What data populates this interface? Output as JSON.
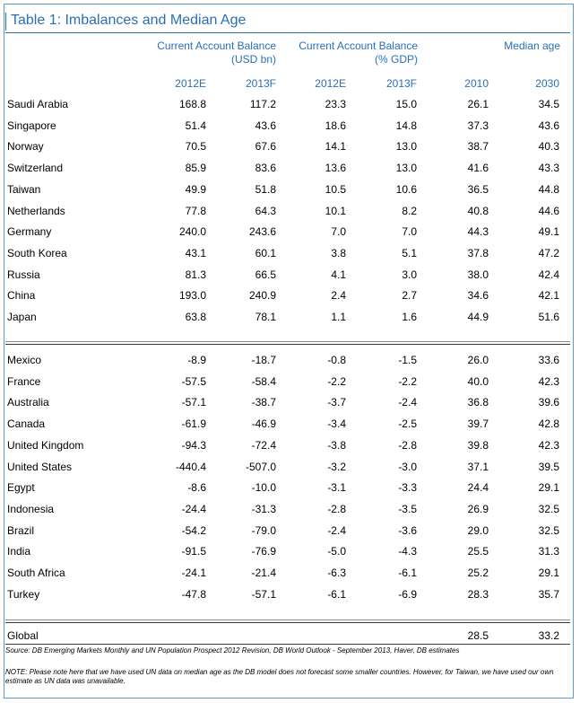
{
  "title": "Table 1: Imbalances and Median Age",
  "headers": {
    "group1": "Current Account Balance",
    "group1_sub": "(USD bn)",
    "group2": "Current Account Balance",
    "group2_sub": "(% GDP)",
    "group3": "Median age",
    "cols": [
      "2012E",
      "2013F",
      "2012E",
      "2013F",
      "2010",
      "2030"
    ]
  },
  "surplus_rows": [
    {
      "country": "Saudi Arabia",
      "v": [
        "168.8",
        "117.2",
        "23.3",
        "15.0",
        "26.1",
        "34.5"
      ]
    },
    {
      "country": "Singapore",
      "v": [
        "51.4",
        "43.6",
        "18.6",
        "14.8",
        "37.3",
        "43.6"
      ]
    },
    {
      "country": "Norway",
      "v": [
        "70.5",
        "67.6",
        "14.1",
        "13.0",
        "38.7",
        "40.3"
      ]
    },
    {
      "country": "Switzerland",
      "v": [
        "85.9",
        "83.6",
        "13.6",
        "13.0",
        "41.6",
        "43.3"
      ]
    },
    {
      "country": "Taiwan",
      "v": [
        "49.9",
        "51.8",
        "10.5",
        "10.6",
        "36.5",
        "44.8"
      ]
    },
    {
      "country": "Netherlands",
      "v": [
        "77.8",
        "64.3",
        "10.1",
        "8.2",
        "40.8",
        "44.6"
      ]
    },
    {
      "country": "Germany",
      "v": [
        "240.0",
        "243.6",
        "7.0",
        "7.0",
        "44.3",
        "49.1"
      ]
    },
    {
      "country": "South Korea",
      "v": [
        "43.1",
        "60.1",
        "3.8",
        "5.1",
        "37.8",
        "47.2"
      ]
    },
    {
      "country": "Russia",
      "v": [
        "81.3",
        "66.5",
        "4.1",
        "3.0",
        "38.0",
        "42.4"
      ]
    },
    {
      "country": "China",
      "v": [
        "193.0",
        "240.9",
        "2.4",
        "2.7",
        "34.6",
        "42.1"
      ]
    },
    {
      "country": "Japan",
      "v": [
        "63.8",
        "78.1",
        "1.1",
        "1.6",
        "44.9",
        "51.6"
      ]
    }
  ],
  "deficit_rows": [
    {
      "country": "Mexico",
      "v": [
        "-8.9",
        "-18.7",
        "-0.8",
        "-1.5",
        "26.0",
        "33.6"
      ]
    },
    {
      "country": "France",
      "v": [
        "-57.5",
        "-58.4",
        "-2.2",
        "-2.2",
        "40.0",
        "42.3"
      ]
    },
    {
      "country": "Australia",
      "v": [
        "-57.1",
        "-38.7",
        "-3.7",
        "-2.4",
        "36.8",
        "39.6"
      ]
    },
    {
      "country": "Canada",
      "v": [
        "-61.9",
        "-46.9",
        "-3.4",
        "-2.5",
        "39.7",
        "42.8"
      ]
    },
    {
      "country": "United Kingdom",
      "v": [
        "-94.3",
        "-72.4",
        "-3.8",
        "-2.8",
        "39.8",
        "42.3"
      ]
    },
    {
      "country": "United States",
      "v": [
        "-440.4",
        "-507.0",
        "-3.2",
        "-3.0",
        "37.1",
        "39.5"
      ]
    },
    {
      "country": "Egypt",
      "v": [
        "-8.6",
        "-10.0",
        "-3.1",
        "-3.3",
        "24.4",
        "29.1"
      ]
    },
    {
      "country": "Indonesia",
      "v": [
        "-24.4",
        "-31.3",
        "-2.8",
        "-3.5",
        "26.9",
        "32.5"
      ]
    },
    {
      "country": "Brazil",
      "v": [
        "-54.2",
        "-79.0",
        "-2.4",
        "-3.6",
        "29.0",
        "32.5"
      ]
    },
    {
      "country": "India",
      "v": [
        "-91.5",
        "-76.9",
        "-5.0",
        "-4.3",
        "25.5",
        "31.3"
      ]
    },
    {
      "country": "South Africa",
      "v": [
        "-24.1",
        "-21.4",
        "-6.3",
        "-6.1",
        "25.2",
        "29.1"
      ]
    },
    {
      "country": "Turkey",
      "v": [
        "-47.8",
        "-57.1",
        "-6.1",
        "-6.9",
        "28.3",
        "35.7"
      ]
    }
  ],
  "global_row": {
    "country": "Global",
    "v": [
      "",
      "",
      "",
      "",
      "28.5",
      "33.2"
    ]
  },
  "source": "Source: DB Emerging Markets Monthly and UN Population Prospect 2012 Revision, DB World Outlook - September 2013, Haver, DB estimates",
  "note": "NOTE: Please note here that we have used UN data on median age as the DB model does not forecast some smaller countries. However, for Taiwan, we have used our own estimate as UN data was unavailable."
}
